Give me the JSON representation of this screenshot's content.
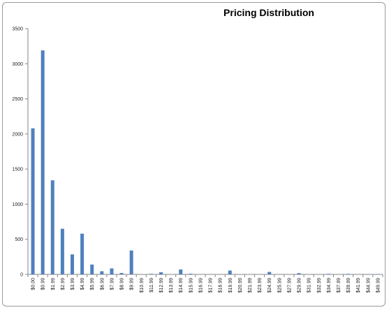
{
  "chart_data": {
    "type": "bar",
    "title": "Pricing Distribution",
    "xlabel": "",
    "ylabel": "",
    "ylim": [
      0,
      3500
    ],
    "yticks": [
      0,
      500,
      1000,
      1500,
      2000,
      2500,
      3000,
      3500
    ],
    "grid": false,
    "legend": "none",
    "bar_color": "#4f81bd",
    "categories": [
      "$0.00",
      "$0.99",
      "$1.99",
      "$2.99",
      "$3.99",
      "$4.99",
      "$5.99",
      "$6.99",
      "$7.99",
      "$8.99",
      "$9.99",
      "$10.99",
      "$11.99",
      "$12.99",
      "$13.99",
      "$14.99",
      "$15.99",
      "$16.99",
      "$17.99",
      "$18.99",
      "$19.99",
      "$20.99",
      "$21.99",
      "$23.99",
      "$24.99",
      "$25.99",
      "$27.99",
      "$29.99",
      "$31.99",
      "$32.99",
      "$34.99",
      "$37.99",
      "$39.99",
      "$41.99",
      "$44.99",
      "$49.99"
    ],
    "values": [
      2080,
      3190,
      1340,
      650,
      285,
      580,
      140,
      45,
      85,
      20,
      340,
      0,
      8,
      30,
      0,
      70,
      10,
      0,
      0,
      0,
      55,
      0,
      0,
      0,
      35,
      0,
      0,
      18,
      0,
      0,
      8,
      0,
      8,
      0,
      5,
      5
    ]
  }
}
